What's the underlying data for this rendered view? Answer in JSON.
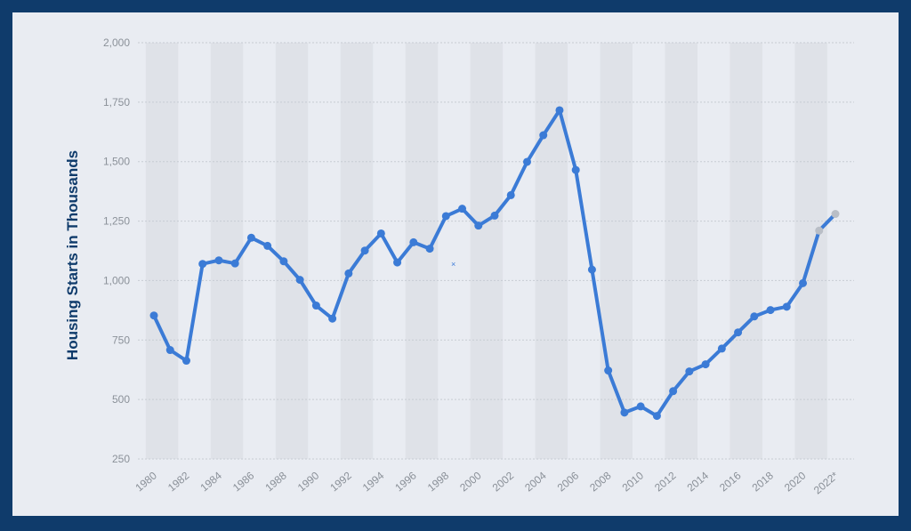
{
  "chart_data": {
    "type": "line",
    "title": "",
    "xlabel": "",
    "ylabel": "Housing Starts in Thousands",
    "ylim": [
      250,
      2000
    ],
    "yticks": [
      250,
      500,
      750,
      1000,
      1250,
      1500,
      1750,
      2000
    ],
    "ytick_labels": [
      "250",
      "500",
      "750",
      "1,000",
      "1,250",
      "1,500",
      "1,750",
      "2,000"
    ],
    "xtick_labels": [
      "1980",
      "1982",
      "1984",
      "1986",
      "1988",
      "1990",
      "1992",
      "1994",
      "1996",
      "1998",
      "2000",
      "2002",
      "2004",
      "2006",
      "2008",
      "2010",
      "2012",
      "2014",
      "2016",
      "2018",
      "2020",
      "2022*"
    ],
    "grid": true,
    "legend": "none",
    "colors": {
      "line": "#3b7bd6",
      "forecast": "#b9bec6",
      "grid": "#c7ccd3",
      "band": "#dfe2e8",
      "background": "#e9ecf2"
    },
    "x": [
      1980,
      1981,
      1982,
      1983,
      1984,
      1985,
      1986,
      1987,
      1988,
      1989,
      1990,
      1991,
      1992,
      1993,
      1994,
      1995,
      1996,
      1997,
      1998,
      1999,
      2000,
      2001,
      2002,
      2003,
      2004,
      2005,
      2006,
      2007,
      2008,
      2009,
      2010,
      2011,
      2012,
      2013,
      2014,
      2015,
      2016,
      2017,
      2018,
      2019,
      2020,
      2021,
      2022
    ],
    "series": [
      {
        "values": [
          853,
          708,
          663,
          1070,
          1085,
          1072,
          1180,
          1146,
          1081,
          1003,
          895,
          840,
          1030,
          1126,
          1198,
          1076,
          1161,
          1134,
          1271,
          1302,
          1231,
          1273,
          1359,
          1499,
          1611,
          1716,
          1465,
          1046,
          622,
          445,
          471,
          431,
          535,
          618,
          648,
          714,
          782,
          849,
          876,
          890,
          989,
          1210,
          1280
        ],
        "forecast_from_index": 41
      }
    ],
    "annotation_mark": "×"
  }
}
